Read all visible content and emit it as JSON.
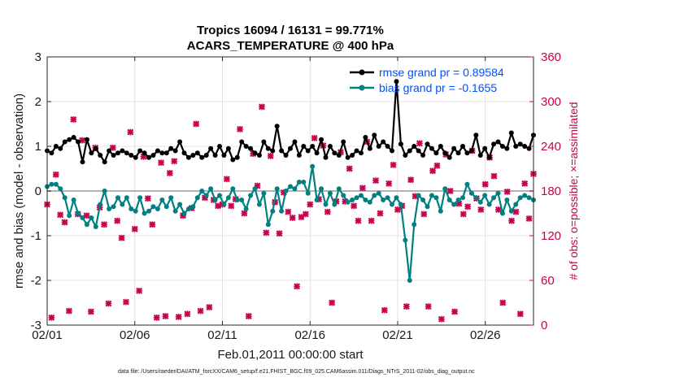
{
  "chart_data": {
    "type": "line",
    "title": "Tropics 16094 / 16131 = 99.771%",
    "subtitle": "ACARS_TEMPERATURE @ 400 hPa",
    "xlabel": "Feb.01,2011 00:00:00 start",
    "ylabel": "rmse and bias (model - observation)",
    "y2label": "# of obs: o=possible; ×=assimilated",
    "x_tick_labels": [
      "02/01",
      "02/06",
      "02/11",
      "02/16",
      "02/21",
      "02/26"
    ],
    "x_tick_days": [
      0,
      5,
      10,
      15,
      20,
      25
    ],
    "xlim_days": [
      0,
      27.75
    ],
    "ylim": [
      -3,
      3
    ],
    "y_ticks": [
      -3,
      -2,
      -1,
      0,
      1,
      2,
      3
    ],
    "y2lim": [
      0,
      360
    ],
    "y2_ticks": [
      0,
      60,
      120,
      180,
      240,
      300,
      360
    ],
    "grid": true,
    "legend_position": "top-right",
    "series": [
      {
        "name": "rmse grand pr = 0.89584",
        "color": "#000000",
        "values": [
          0.9,
          0.85,
          1.0,
          0.95,
          1.1,
          1.15,
          1.2,
          1.1,
          0.65,
          1.15,
          0.85,
          0.95,
          0.8,
          0.65,
          0.9,
          0.8,
          0.85,
          0.9,
          0.85,
          0.8,
          0.75,
          0.9,
          0.85,
          0.75,
          0.8,
          0.9,
          0.85,
          0.85,
          0.95,
          0.9,
          1.1,
          0.85,
          0.75,
          0.8,
          0.85,
          0.75,
          0.8,
          0.95,
          0.8,
          1.0,
          0.8,
          0.95,
          0.7,
          0.75,
          1.1,
          1.0,
          0.95,
          0.85,
          0.8,
          1.1,
          0.95,
          0.9,
          1.45,
          0.9,
          0.8,
          0.95,
          1.1,
          0.8,
          1.0,
          0.9,
          1.0,
          0.85,
          1.15,
          0.75,
          1.0,
          0.85,
          0.8,
          1.1,
          0.75,
          0.8,
          0.9,
          0.85,
          1.2,
          0.95,
          1.25,
          1.0,
          1.1,
          1.0,
          0.9,
          2.45,
          1.05,
          0.8,
          0.9,
          1.0,
          0.9,
          0.8,
          1.05,
          0.95,
          0.85,
          1.0,
          0.85,
          0.75,
          0.95,
          0.85,
          1.0,
          0.85,
          0.9,
          1.25,
          0.8,
          0.95,
          0.75,
          1.05,
          1.1,
          1.0,
          0.95,
          1.3,
          1.0,
          1.05,
          1.0,
          0.95,
          1.25
        ]
      },
      {
        "name": "bias grand pr = -0.1655",
        "color": "#008080",
        "values": [
          0.1,
          0.15,
          0.15,
          0.05,
          -0.15,
          -0.55,
          -0.2,
          -0.5,
          -0.6,
          -0.75,
          -0.6,
          -0.8,
          -0.3,
          0.0,
          -0.4,
          -0.35,
          -0.15,
          -0.3,
          -0.15,
          -0.4,
          -0.45,
          -0.15,
          -0.5,
          -0.45,
          -0.35,
          -0.4,
          -0.2,
          -0.35,
          -0.15,
          -0.45,
          -0.3,
          -0.5,
          -0.4,
          -0.35,
          -0.15,
          0.0,
          -0.1,
          0.05,
          -0.2,
          -0.1,
          -0.3,
          -0.15,
          0.05,
          -0.2,
          -0.2,
          -0.4,
          -0.1,
          0.05,
          -0.3,
          -0.05,
          -0.75,
          -0.45,
          0.05,
          -0.45,
          0.0,
          0.1,
          0.05,
          0.2,
          0.2,
          -0.05,
          0.55,
          -0.2,
          0.05,
          -0.3,
          -0.05,
          -0.3,
          0.05,
          -0.1,
          -0.25,
          -0.2,
          -0.15,
          -0.1,
          -0.2,
          -0.25,
          -0.1,
          -0.05,
          -0.2,
          -0.15,
          -0.3,
          -0.15,
          -0.3,
          -1.1,
          -2.0,
          -0.75,
          -0.1,
          -0.2,
          -0.35,
          -0.1,
          -0.15,
          -0.45,
          0.05,
          -0.2,
          -0.3,
          -0.2,
          -0.15,
          0.15,
          -0.05,
          -0.15,
          -0.25,
          -0.1,
          -0.3,
          -0.15,
          -0.05,
          -0.5,
          -0.2,
          -0.45,
          -0.3,
          -0.15,
          -0.1,
          -0.15,
          -0.2
        ]
      }
    ],
    "obs_assimilated": [
      162,
      10,
      202,
      148,
      138,
      19,
      276,
      149,
      248,
      147,
      18,
      238,
      158,
      135,
      29,
      238,
      140,
      117,
      31,
      259,
      129,
      46,
      226,
      170,
      135,
      10,
      218,
      12,
      204,
      220,
      11,
      147,
      15,
      157,
      270,
      19,
      171,
      24,
      168,
      160,
      162,
      196,
      160,
      169,
      263,
      150,
      12,
      230,
      187,
      293,
      124,
      227,
      165,
      123,
      178,
      152,
      144,
      52,
      145,
      149,
      162,
      251,
      169,
      241,
      152,
      30,
      166,
      232,
      166,
      210,
      160,
      140,
      184,
      246,
      140,
      194,
      150,
      20,
      190,
      215,
      155,
      160,
      25,
      195,
      173,
      244,
      149,
      25,
      207,
      214,
      8,
      229,
      180,
      18,
      163,
      149,
      159,
      234,
      170,
      155,
      189,
      225,
      200,
      155,
      30,
      179,
      140,
      152,
      15,
      190,
      143,
      203
    ]
  },
  "footer": {
    "text": "data file: /Users/raeder/DAI/ATM_forcXX/CAM6_setup/f.e21.FHIST_BGC.f09_025.CAM6assim.011/Diags_NTrS_2011-02/obs_diag_output.nc"
  }
}
